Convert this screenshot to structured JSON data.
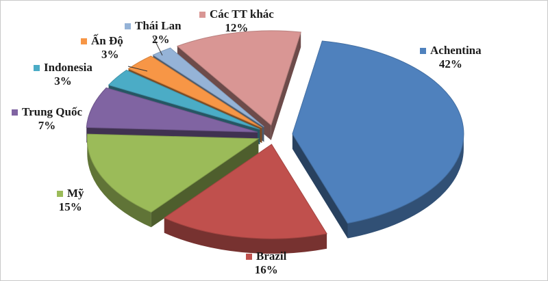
{
  "chart_data": {
    "type": "pie",
    "title": "",
    "slices": [
      {
        "name": "Achentina",
        "value": 42,
        "label": "42%",
        "color": "#4F81BD"
      },
      {
        "name": "Brazil",
        "value": 16,
        "label": "16%",
        "color": "#C0504D"
      },
      {
        "name": "Mỹ",
        "value": 15,
        "label": "15%",
        "color": "#9BBB59"
      },
      {
        "name": "Trung Quốc",
        "value": 7,
        "label": "7%",
        "color": "#8064A2"
      },
      {
        "name": "Indonesia",
        "value": 3,
        "label": "3%",
        "color": "#4BACC6"
      },
      {
        "name": "Ấn Độ",
        "value": 3,
        "label": "3%",
        "color": "#F79646"
      },
      {
        "name": "Thái Lan",
        "value": 2,
        "label": "2%",
        "color": "#95B3D7"
      },
      {
        "name": "Các TT khác",
        "value": 12,
        "label": "12%",
        "color": "#D99694"
      }
    ]
  }
}
